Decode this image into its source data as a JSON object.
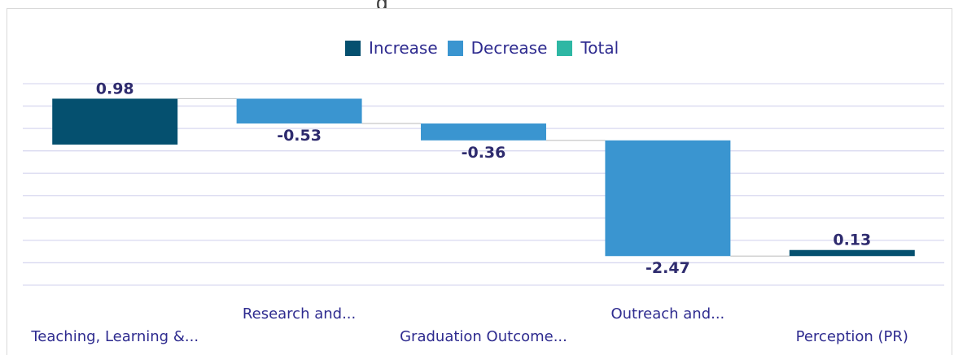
{
  "title_fragment": "g",
  "legend": {
    "increase": {
      "label": "Increase",
      "color": "#05506f"
    },
    "decrease": {
      "label": "Decrease",
      "color": "#3a95d0"
    },
    "total": {
      "label": "Total",
      "color": "#2eb7a4"
    }
  },
  "chart_data": {
    "type": "bar",
    "subtype": "waterfall",
    "categories": [
      "Teaching, Learning &...",
      "Research and...",
      "Graduation Outcome...",
      "Outreach and...",
      "Perception (PR)"
    ],
    "values": [
      0.98,
      -0.53,
      -0.36,
      -2.47,
      0.13
    ],
    "value_labels": [
      "0.98",
      "-0.53",
      "-0.36",
      "-2.47",
      "0.13"
    ],
    "bar_kinds": [
      "increase",
      "decrease",
      "decrease",
      "decrease",
      "increase"
    ],
    "ylim": [
      -3.0,
      1.3
    ],
    "grid": true,
    "legend_position": "top-center"
  }
}
